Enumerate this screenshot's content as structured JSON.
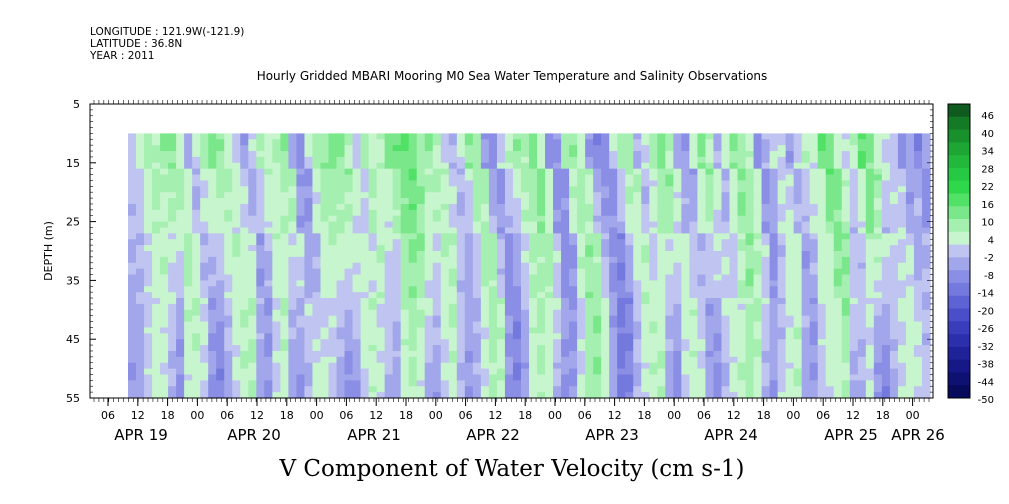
{
  "header": {
    "longitude": "LONGITUDE : 121.9W(-121.9)",
    "latitude": "LATITUDE : 36.8N",
    "year": "YEAR : 2011",
    "title": "Hourly Gridded MBARI Mooring M0 Sea Water Temperature and Salinity Observations"
  },
  "chart_data": {
    "type": "heatmap",
    "title": "Hourly Gridded MBARI Mooring M0 Sea Water Temperature and Salinity Observations",
    "xlabel": "V Component of Water Velocity (cm s-1)",
    "ylabel": "DEPTH (m)",
    "y_ticks": [
      "5",
      "15",
      "25",
      "35",
      "45",
      "55"
    ],
    "ylim": [
      5,
      55
    ],
    "y_inverted": true,
    "hour_ticks": [
      "06",
      "12",
      "18",
      "00",
      "06",
      "12",
      "18",
      "00",
      "06",
      "12",
      "18",
      "00",
      "06",
      "12",
      "18",
      "00",
      "06",
      "12",
      "18",
      "00",
      "06",
      "12",
      "18",
      "00",
      "06",
      "12",
      "18",
      "00"
    ],
    "day_labels": [
      "APR 19",
      "APR 20",
      "APR 21",
      "APR 22",
      "APR 23",
      "APR 24",
      "APR 25",
      "APR 26"
    ],
    "colorbar_labels": [
      "46",
      "40",
      "34",
      "28",
      "22",
      "16",
      "10",
      "4",
      "-2",
      "-8",
      "-14",
      "-20",
      "-26",
      "-32",
      "-38",
      "-44",
      "-50"
    ],
    "colorbar_range": [
      -50,
      52
    ],
    "data_depth_range": [
      10,
      55
    ],
    "v_profile_surface": [
      2,
      6,
      10,
      8,
      12,
      14,
      6,
      -4,
      4,
      10,
      14,
      12,
      6,
      2,
      -6,
      2,
      10,
      6,
      8,
      12,
      -4,
      -8,
      4,
      10,
      12,
      14,
      14,
      8,
      2,
      10,
      6,
      8,
      14,
      16,
      18,
      14,
      10,
      12,
      8,
      2,
      -2,
      4,
      14,
      10,
      -6,
      -10,
      2,
      8,
      12,
      10,
      16,
      6,
      -8,
      -6,
      10,
      12,
      6,
      -6,
      -10,
      -8,
      4,
      12,
      10,
      -2,
      4,
      10,
      14,
      8,
      -4,
      -6,
      6,
      14,
      8,
      -2,
      6,
      14,
      10,
      6,
      -8,
      -2,
      4,
      2,
      -6,
      2,
      8,
      6,
      18,
      16,
      6,
      2,
      8,
      18,
      14,
      6,
      4,
      2,
      -8,
      -4,
      -10,
      -4
    ],
    "v_profile_bottom": [
      -6,
      -4,
      2,
      6,
      4,
      -2,
      -8,
      4,
      6,
      2,
      -6,
      -10,
      -4,
      2,
      6,
      8,
      -4,
      -6,
      2,
      6,
      -4,
      -6,
      -2,
      4,
      6,
      2,
      -4,
      -8,
      -6,
      2,
      6,
      4,
      -2,
      -4,
      6,
      8,
      4,
      -4,
      -6,
      2,
      6,
      -2,
      -6,
      -2,
      4,
      8,
      6,
      -6,
      -10,
      -4,
      6,
      8,
      4,
      -2,
      -8,
      -6,
      4,
      10,
      12,
      6,
      -4,
      -12,
      -10,
      -2,
      4,
      6,
      8,
      -4,
      -8,
      2,
      6,
      4,
      -4,
      -8,
      -2,
      4,
      8,
      10,
      6,
      -2,
      -6,
      2,
      6,
      8,
      -4,
      -6,
      2,
      4,
      6,
      8,
      -4,
      -2,
      4,
      -6,
      -10,
      -4,
      2,
      6,
      4,
      2
    ]
  },
  "colorbar": {
    "colors": [
      "#0f5a1e",
      "#147a25",
      "#18912c",
      "#1da634",
      "#22b83c",
      "#26c943",
      "#2fd74b",
      "#50e166",
      "#7ae88a",
      "#a5f0b0",
      "#c7f5cd",
      "#c0c4f0",
      "#a2a6ea",
      "#8a8ee4",
      "#7479de",
      "#5d62d4",
      "#4a4ec8",
      "#3a3dbb",
      "#2c2fab",
      "#20229a",
      "#161887",
      "#0e1072",
      "#080a5c"
    ]
  }
}
